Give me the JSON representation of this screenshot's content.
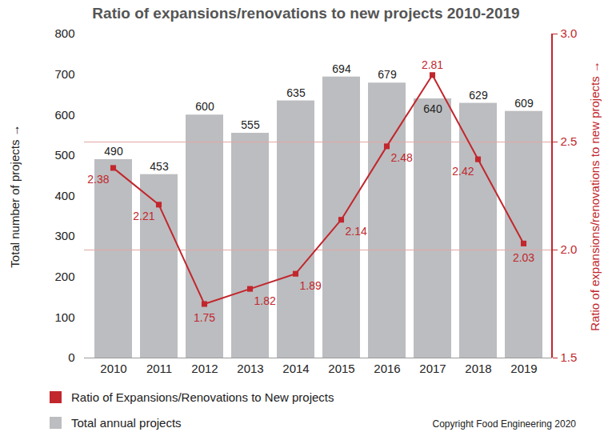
{
  "chart_data": {
    "type": "bar",
    "title": "Ratio of expansions/renovations to new projects 2010-2019",
    "categories": [
      "2010",
      "2011",
      "2012",
      "2013",
      "2014",
      "2015",
      "2016",
      "2017",
      "2018",
      "2019"
    ],
    "series": [
      {
        "name": "Ratio of Expansions/Renovations to New projects",
        "type": "line",
        "axis": "y2",
        "color": "#c1272d",
        "marker": "square",
        "values": [
          2.38,
          2.21,
          1.75,
          1.82,
          1.89,
          2.14,
          2.48,
          2.81,
          2.42,
          2.03
        ]
      },
      {
        "name": "Total annual projects",
        "type": "bar",
        "color": "#bcbdc0",
        "values": [
          490,
          453,
          600,
          555,
          635,
          694,
          679,
          640,
          629,
          609
        ]
      }
    ],
    "ylabel": "Total number of projects",
    "y2label": "Ratio of expansions/renovations to new projects",
    "ylim": [
      0,
      800
    ],
    "yticks": [
      0,
      100,
      200,
      300,
      400,
      500,
      600,
      700,
      800
    ],
    "y2lim": [
      1.5,
      3.0
    ],
    "y2ticks": [
      1.5,
      {
        "value": 2,
        "label": "2.0"
      },
      2.5,
      {
        "value": 3,
        "label": "3.0"
      }
    ],
    "grid": true,
    "data_labels": true,
    "legend": "bottom left",
    "annotations": [
      "Copyright Food Engineering 2020"
    ]
  }
}
